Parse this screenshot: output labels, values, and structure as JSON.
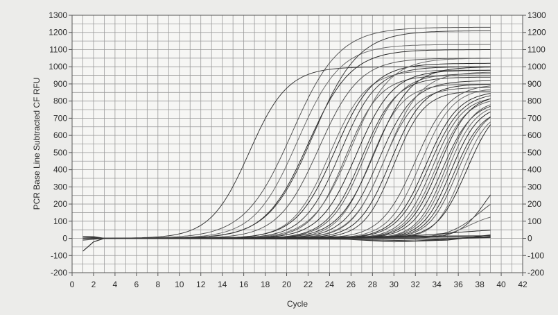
{
  "chart_data": {
    "type": "line",
    "xlabel": "Cycle",
    "ylabel": "PCR Base Line Subtracted CF RFU",
    "xlim": [
      0,
      42
    ],
    "ylim": [
      -200,
      1300
    ],
    "x_ticks": [
      0,
      2,
      4,
      6,
      8,
      10,
      12,
      14,
      16,
      18,
      20,
      22,
      24,
      26,
      28,
      30,
      32,
      34,
      36,
      38,
      40,
      42
    ],
    "y_ticks": [
      -200,
      -100,
      0,
      100,
      200,
      300,
      400,
      500,
      600,
      700,
      800,
      900,
      1000,
      1100,
      1200,
      1300
    ],
    "grid": true,
    "secondary_y_axis": true,
    "x_range": [
      1,
      39
    ],
    "curve_model": "sigmoid",
    "series": [
      {
        "plateau": 1000,
        "midpoint": 16.5,
        "slope": 1.8
      },
      {
        "plateau": 1230,
        "midpoint": 20.5,
        "slope": 2.2
      },
      {
        "plateau": 1130,
        "midpoint": 21.0,
        "slope": 2.0
      },
      {
        "plateau": 1100,
        "midpoint": 22.0,
        "slope": 2.0
      },
      {
        "plateau": 1210,
        "midpoint": 22.5,
        "slope": 2.1
      },
      {
        "plateau": 1050,
        "midpoint": 23.0,
        "slope": 1.9
      },
      {
        "plateau": 980,
        "midpoint": 24.0,
        "slope": 1.7
      },
      {
        "plateau": 1020,
        "midpoint": 24.5,
        "slope": 1.8
      },
      {
        "plateau": 1000,
        "midpoint": 25.0,
        "slope": 1.7
      },
      {
        "plateau": 950,
        "midpoint": 25.5,
        "slope": 1.6
      },
      {
        "plateau": 1050,
        "midpoint": 26.0,
        "slope": 1.8
      },
      {
        "plateau": 980,
        "midpoint": 26.5,
        "slope": 1.7
      },
      {
        "plateau": 940,
        "midpoint": 27.0,
        "slope": 1.6
      },
      {
        "plateau": 960,
        "midpoint": 27.3,
        "slope": 1.6
      },
      {
        "plateau": 900,
        "midpoint": 27.8,
        "slope": 1.5
      },
      {
        "plateau": 1000,
        "midpoint": 28.2,
        "slope": 1.7
      },
      {
        "plateau": 920,
        "midpoint": 28.6,
        "slope": 1.6
      },
      {
        "plateau": 880,
        "midpoint": 29.0,
        "slope": 1.5
      },
      {
        "plateau": 970,
        "midpoint": 29.3,
        "slope": 1.6
      },
      {
        "plateau": 900,
        "midpoint": 29.7,
        "slope": 1.5
      },
      {
        "plateau": 860,
        "midpoint": 30.0,
        "slope": 1.4
      },
      {
        "plateau": 900,
        "midpoint": 32.0,
        "slope": 1.6
      },
      {
        "plateau": 880,
        "midpoint": 32.5,
        "slope": 1.5
      },
      {
        "plateau": 860,
        "midpoint": 33.0,
        "slope": 1.5
      },
      {
        "plateau": 850,
        "midpoint": 33.3,
        "slope": 1.5
      },
      {
        "plateau": 830,
        "midpoint": 33.6,
        "slope": 1.4
      },
      {
        "plateau": 820,
        "midpoint": 33.9,
        "slope": 1.4
      },
      {
        "plateau": 840,
        "midpoint": 34.2,
        "slope": 1.4
      },
      {
        "plateau": 800,
        "midpoint": 34.5,
        "slope": 1.4
      },
      {
        "plateau": 810,
        "midpoint": 34.8,
        "slope": 1.3
      },
      {
        "plateau": 790,
        "midpoint": 35.0,
        "slope": 1.3
      },
      {
        "plateau": 780,
        "midpoint": 35.3,
        "slope": 1.3
      },
      {
        "plateau": 760,
        "midpoint": 35.6,
        "slope": 1.3
      },
      {
        "plateau": 770,
        "midpoint": 35.9,
        "slope": 1.3
      },
      {
        "plateau": 750,
        "midpoint": 36.3,
        "slope": 1.2
      },
      {
        "plateau": 800,
        "midpoint": 36.8,
        "slope": 1.4
      },
      {
        "plateau": 420,
        "midpoint": 38.5,
        "slope": 1.2
      },
      {
        "plateau": 300,
        "midpoint": 38.0,
        "slope": 1.5
      },
      {
        "plateau": 150,
        "midpoint": 37.0,
        "slope": 1.3
      },
      {
        "plateau": 60,
        "midpoint": 35.0,
        "slope": 3.0
      }
    ],
    "flat_series": [
      {
        "points": [
          [
            1,
            -75
          ],
          [
            2,
            -20
          ],
          [
            3,
            0
          ],
          [
            39,
            15
          ]
        ]
      },
      {
        "points": [
          [
            1,
            10
          ],
          [
            2,
            10
          ],
          [
            3,
            0
          ],
          [
            12,
            2
          ],
          [
            22,
            5
          ],
          [
            39,
            8
          ]
        ]
      },
      {
        "points": [
          [
            1,
            -10
          ],
          [
            2,
            -5
          ],
          [
            3,
            0
          ],
          [
            26,
            -5
          ],
          [
            32,
            -15
          ],
          [
            39,
            10
          ]
        ]
      },
      {
        "points": [
          [
            1,
            8
          ],
          [
            3,
            0
          ],
          [
            24,
            0
          ],
          [
            30,
            -20
          ],
          [
            35,
            -10
          ],
          [
            39,
            20
          ]
        ]
      },
      {
        "points": [
          [
            1,
            0
          ],
          [
            3,
            0
          ],
          [
            28,
            0
          ],
          [
            33,
            -5
          ],
          [
            39,
            5
          ]
        ]
      }
    ]
  }
}
